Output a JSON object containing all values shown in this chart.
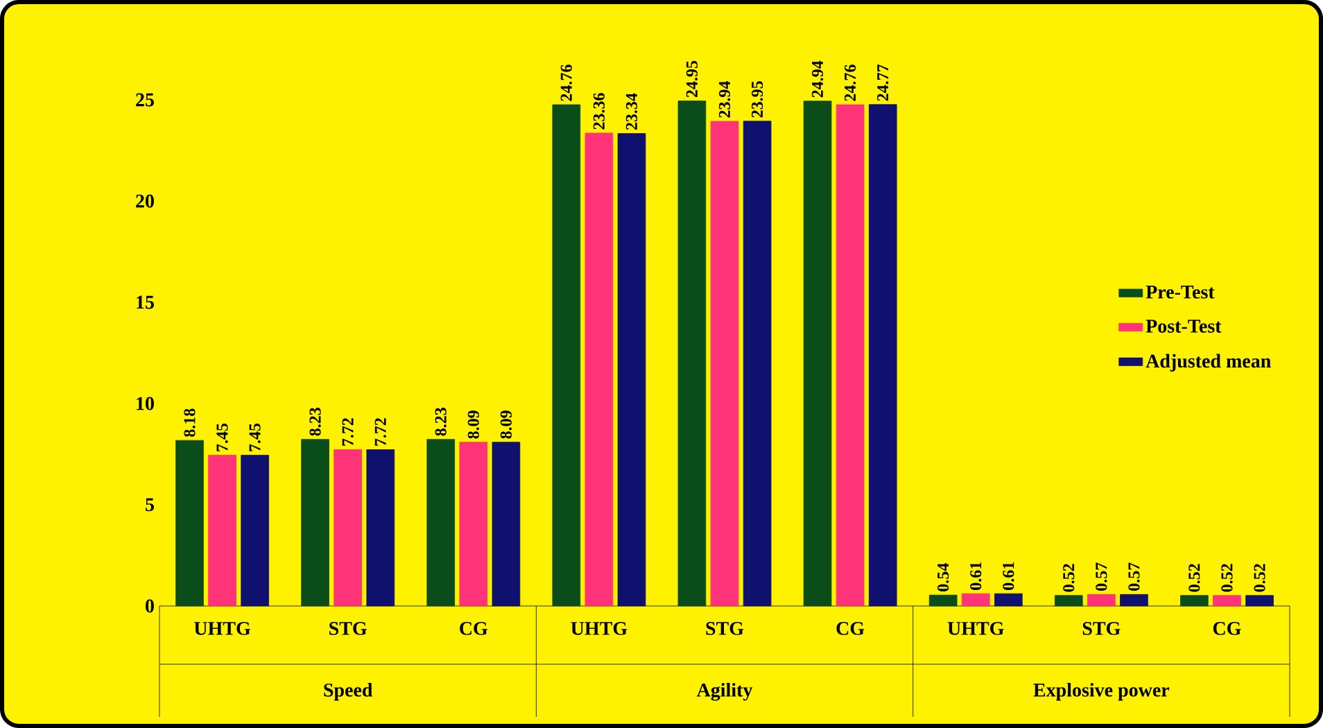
{
  "chart_data": {
    "type": "bar",
    "categories": [
      "UHTG",
      "STG",
      "CG",
      "UHTG",
      "STG",
      "CG",
      "UHTG",
      "STG",
      "CG"
    ],
    "series": [
      {
        "name": "Pre-Test",
        "color": "#0b4d1a",
        "values": [
          8.18,
          8.23,
          8.23,
          24.76,
          24.95,
          24.94,
          0.54,
          0.52,
          0.52
        ]
      },
      {
        "name": "Post-Test",
        "color": "#ff3377",
        "values": [
          7.45,
          7.72,
          8.09,
          23.36,
          23.94,
          24.76,
          0.61,
          0.57,
          0.52
        ]
      },
      {
        "name": "Adjusted mean",
        "color": "#10106e",
        "values": [
          7.45,
          7.72,
          8.09,
          23.34,
          23.95,
          24.77,
          0.61,
          0.57,
          0.52
        ]
      }
    ],
    "ylim": [
      0,
      25
    ],
    "yticks": [
      0,
      5,
      10,
      15,
      20,
      25
    ],
    "data_labels": true,
    "legend": "right",
    "grid": false,
    "annotations": [
      "Speed",
      "Agility",
      "Explosive power"
    ]
  }
}
